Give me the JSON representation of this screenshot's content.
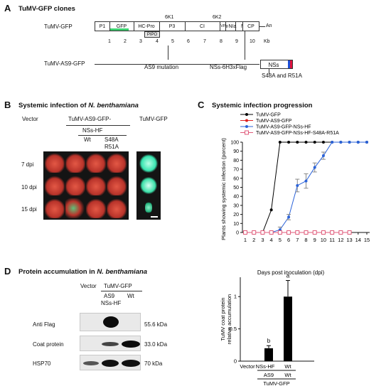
{
  "panel_a": {
    "letter": "A",
    "title": "TuMV-GFP clones",
    "construct_label": "TuMV-GFP",
    "segments": [
      "P1",
      "GFP",
      "HC-Pro",
      "P3",
      "PIPO",
      "6K1",
      "CI",
      "6K2",
      "VPg",
      "NIa",
      "NIb",
      "CP"
    ],
    "tail": "An",
    "kb_ticks": [
      "1",
      "2",
      "3",
      "4",
      "5",
      "6",
      "7",
      "8",
      "9",
      "10"
    ],
    "kb_unit": "Kb",
    "mutant_label": "TuMV-AS9-GFP",
    "mutation_label": "AS9 mutation",
    "nss_construct": "NSs-6H3xFlag",
    "nss_box": "NSs",
    "nss_mutation": "S48A and R51A",
    "gfp_color": "#3bd16f",
    "flag_colors": [
      "#1e4fd8",
      "#e0113c"
    ]
  },
  "panel_b": {
    "letter": "B",
    "title_prefix": "Systemic infection of",
    "title_species": "N. benthamiana",
    "vector_label": "Vector",
    "tumv_as9_label": "TuMV-AS9-GFP-",
    "tumv_gfp_label": "TuMV-GFP",
    "nss_hf_label": "NSs-HF",
    "wt_label": "Wt",
    "mut_label_1": "S48A",
    "mut_label_2": "R51A",
    "rows": [
      "7 dpi",
      "10 dpi",
      "15 dpi"
    ]
  },
  "panel_c": {
    "letter": "C",
    "title": "Systemic infection progression",
    "legend": [
      "TuMV-GFP",
      "TuMV-AS9-GFP",
      "TuMV-AS9-GFP-NSs-HF",
      "TuMV-AS9-GFP-NSs-HF-S48A-R51A"
    ],
    "legend_colors": [
      "#000000",
      "#e02020",
      "#2b63d9",
      "#e05a7a"
    ]
  },
  "chart_data": [
    {
      "type": "line",
      "xlabel": "Days post inoculation (dpi)",
      "ylabel": "Plants showing systemic infection (porcent)",
      "xlim": [
        1,
        15
      ],
      "ylim": [
        0,
        100
      ],
      "x": [
        1,
        2,
        3,
        4,
        5,
        6,
        7,
        8,
        9,
        10,
        11,
        12,
        13,
        14,
        15
      ],
      "yticks": [
        "0",
        "10",
        "20",
        "30",
        "40",
        "50",
        "60",
        "70",
        "80",
        "90",
        "100"
      ],
      "series": [
        {
          "name": "TuMV-GFP",
          "x": [
            1,
            2,
            3,
            4,
            5,
            6,
            7,
            8,
            9,
            10,
            11,
            12,
            13,
            14,
            15
          ],
          "values": [
            0,
            0,
            0,
            25,
            100,
            100,
            100,
            100,
            100,
            100,
            100,
            100,
            100,
            100,
            100
          ]
        },
        {
          "name": "TuMV-AS9-GFP",
          "x": [
            1,
            2,
            3,
            4,
            5,
            6,
            7,
            8,
            9,
            10,
            11,
            12,
            13
          ],
          "values": [
            0,
            0,
            0,
            0,
            0,
            0,
            0,
            0,
            0,
            0,
            0,
            0,
            0
          ]
        },
        {
          "name": "TuMV-AS9-GFP-NSs-HF",
          "x": [
            4,
            5,
            6,
            7,
            8,
            9,
            10,
            11,
            12,
            13,
            14,
            15
          ],
          "values": [
            0,
            3,
            17,
            52,
            57,
            72,
            85,
            100,
            100,
            100,
            100,
            100
          ],
          "err": [
            0,
            3,
            3,
            7,
            8,
            5,
            4,
            0,
            0,
            0,
            0,
            0
          ]
        },
        {
          "name": "TuMV-AS9-GFP-NSs-HF-S48A-R51A",
          "x": [
            1,
            2,
            3,
            4,
            5,
            6,
            7,
            8,
            9,
            10,
            11,
            12,
            13
          ],
          "values": [
            0,
            0,
            0,
            0,
            0,
            0,
            0,
            0,
            0,
            0,
            0,
            0,
            0
          ]
        }
      ]
    },
    {
      "type": "bar",
      "categories": [
        "Vector",
        "NSs-HF",
        "Wt"
      ],
      "values": [
        0,
        0.2,
        1.0
      ],
      "err": [
        0,
        0.04,
        0.25
      ],
      "ylabel": "TuMV coat protein relative accumulation",
      "ylim": [
        0,
        1.3
      ],
      "yticks": [
        "0",
        "0.5",
        "1"
      ],
      "sig_letters": [
        "",
        "b",
        "a"
      ],
      "sublabels": [
        "AS9",
        "Wt"
      ],
      "group_label": "TuMV-GFP"
    }
  ],
  "panel_d": {
    "letter": "D",
    "title_prefix": "Protein accumulation in",
    "title_species": "N. benthamiana",
    "vector_label": "Vector",
    "tumv_gfp_label": "TuMV-GFP",
    "lane_as9": "AS9",
    "lane_nss": "NSs-HF",
    "lane_wt": "Wt",
    "blots": [
      {
        "name": "Anti Flag",
        "size": "55.6 kDa"
      },
      {
        "name": "Coat protein",
        "size": "33.0 kDa"
      },
      {
        "name": "HSP70",
        "size": "70 kDa"
      }
    ]
  }
}
